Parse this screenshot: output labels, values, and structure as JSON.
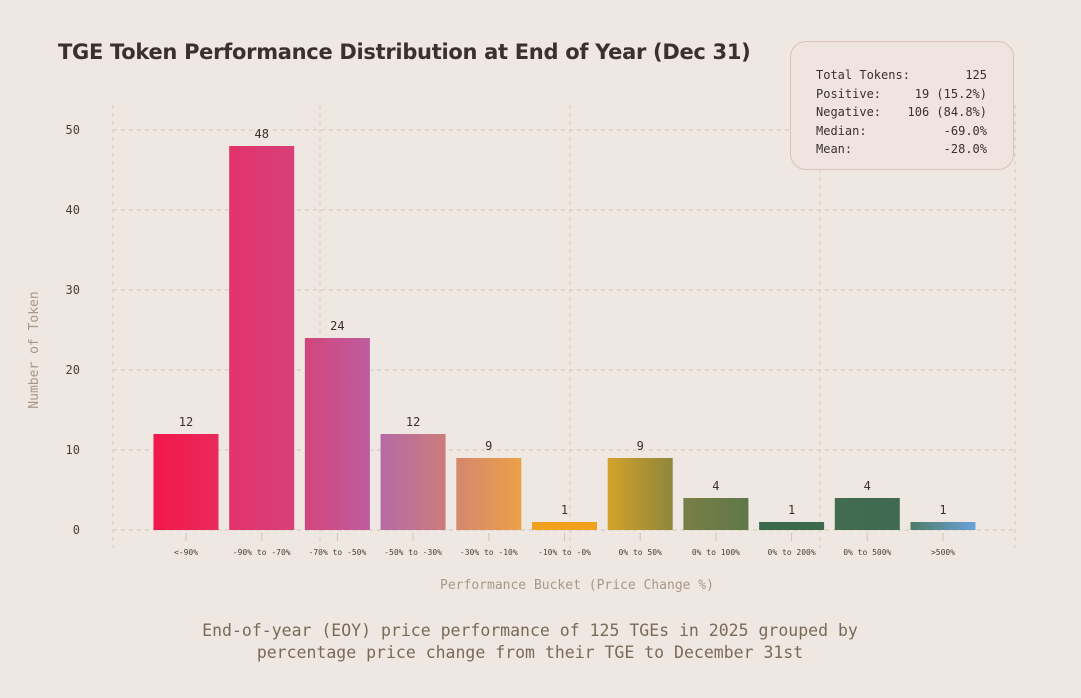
{
  "title": "TGE Token Performance Distribution at End of Year (Dec 31)",
  "stats": [
    {
      "label": "Total Tokens:",
      "value": "125"
    },
    {
      "label": "Positive:",
      "value": "19 (15.2%)"
    },
    {
      "label": "Negative:",
      "value": "106 (84.8%)"
    },
    {
      "label": "Median:",
      "value": "-69.0%"
    },
    {
      "label": "Mean:",
      "value": "-28.0%"
    }
  ],
  "caption": [
    "End-of-year (EOY) price performance of 125 TGEs in 2025 grouped by",
    "percentage price change from their TGE to December 31st"
  ],
  "chart_data": {
    "type": "bar",
    "title": "TGE Token Performance Distribution at End of Year (Dec 31)",
    "xlabel": "Performance Bucket (Price Change %)",
    "ylabel": "Number of Token",
    "categories": [
      "<-90%",
      "-90% to -70%",
      "-70% to -50%",
      "-50% to -30%",
      "-30% to -10%",
      "-10% to -0%",
      "0% to 50%",
      "0% to 100%",
      "0% to 200%",
      "0% to 500%",
      ">500%"
    ],
    "values": [
      12,
      48,
      24,
      12,
      9,
      1,
      9,
      4,
      1,
      4,
      1
    ],
    "ylim": [
      0,
      50
    ],
    "yticks": [
      0,
      10,
      20,
      30,
      40,
      50
    ],
    "grid": true,
    "colors": [
      [
        "#f2174a",
        "#e92a5c"
      ],
      [
        "#e0336a",
        "#d8407a"
      ],
      [
        "#d2467c",
        "#bf5c9e"
      ],
      [
        "#b56aa6",
        "#cc7c7c"
      ],
      [
        "#d5886e",
        "#eba048"
      ],
      [
        "#f0a21e",
        "#f0a21e"
      ],
      [
        "#d4a22a",
        "#8e863c"
      ],
      [
        "#7a7e46",
        "#5e7848"
      ],
      [
        "#3e6a4c",
        "#3e6a4c"
      ],
      [
        "#436c50",
        "#3f6a52"
      ],
      [
        "#4d7c66",
        "#6aa2dc"
      ]
    ]
  }
}
